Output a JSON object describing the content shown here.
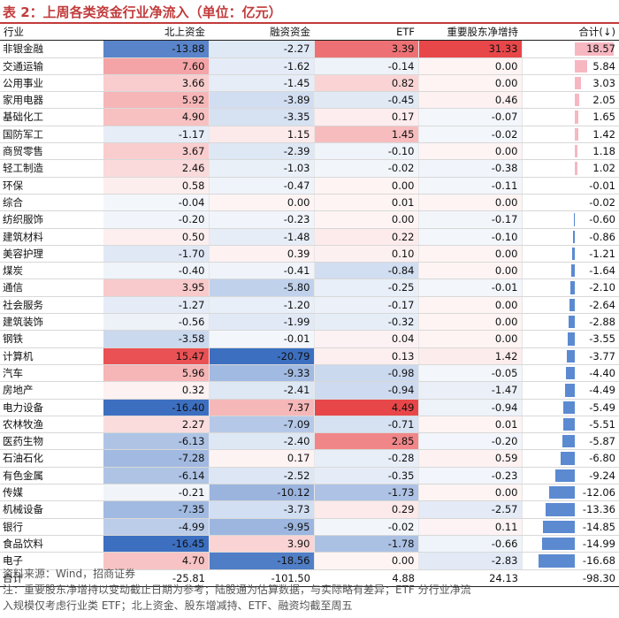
{
  "title": "表 2：上周各类资金行业净流入（单位：亿元）",
  "chart_data": {
    "type": "table",
    "headers": [
      "行业",
      "北上资金",
      "融资资金",
      "ETF",
      "重要股东净增持",
      "合计(↓)"
    ],
    "rows": [
      {
        "name": "非银金融",
        "values": [
          "-13.88",
          "-2.27",
          "3.39",
          "31.33",
          "18.57"
        ]
      },
      {
        "name": "交通运输",
        "values": [
          "7.60",
          "-1.62",
          "-0.14",
          "0.00",
          "5.84"
        ]
      },
      {
        "name": "公用事业",
        "values": [
          "3.66",
          "-1.45",
          "0.82",
          "0.00",
          "3.03"
        ]
      },
      {
        "name": "家用电器",
        "values": [
          "5.92",
          "-3.89",
          "-0.45",
          "0.46",
          "2.05"
        ]
      },
      {
        "name": "基础化工",
        "values": [
          "4.90",
          "-3.35",
          "0.17",
          "-0.07",
          "1.65"
        ]
      },
      {
        "name": "国防军工",
        "values": [
          "-1.17",
          "1.15",
          "1.45",
          "-0.02",
          "1.42"
        ]
      },
      {
        "name": "商贸零售",
        "values": [
          "3.67",
          "-2.39",
          "-0.10",
          "0.00",
          "1.18"
        ]
      },
      {
        "name": "轻工制造",
        "values": [
          "2.46",
          "-1.03",
          "-0.02",
          "-0.38",
          "1.02"
        ]
      },
      {
        "name": "环保",
        "values": [
          "0.58",
          "-0.47",
          "0.00",
          "-0.11",
          "-0.01"
        ]
      },
      {
        "name": "综合",
        "values": [
          "-0.04",
          "0.00",
          "0.01",
          "0.00",
          "-0.02"
        ]
      },
      {
        "name": "纺织服饰",
        "values": [
          "-0.20",
          "-0.23",
          "0.00",
          "-0.17",
          "-0.60"
        ]
      },
      {
        "name": "建筑材料",
        "values": [
          "0.50",
          "-1.48",
          "0.22",
          "-0.10",
          "-0.86"
        ]
      },
      {
        "name": "美容护理",
        "values": [
          "-1.70",
          "0.39",
          "0.10",
          "0.00",
          "-1.21"
        ]
      },
      {
        "name": "煤炭",
        "values": [
          "-0.40",
          "-0.41",
          "-0.84",
          "0.00",
          "-1.64"
        ]
      },
      {
        "name": "通信",
        "values": [
          "3.95",
          "-5.80",
          "-0.25",
          "-0.01",
          "-2.10"
        ]
      },
      {
        "name": "社会服务",
        "values": [
          "-1.27",
          "-1.20",
          "-0.17",
          "0.00",
          "-2.64"
        ]
      },
      {
        "name": "建筑装饰",
        "values": [
          "-0.56",
          "-1.99",
          "-0.32",
          "0.00",
          "-2.88"
        ]
      },
      {
        "name": "钢铁",
        "values": [
          "-3.58",
          "-0.01",
          "0.04",
          "0.00",
          "-3.55"
        ]
      },
      {
        "name": "计算机",
        "values": [
          "15.47",
          "-20.79",
          "0.13",
          "1.42",
          "-3.77"
        ]
      },
      {
        "name": "汽车",
        "values": [
          "5.96",
          "-9.33",
          "-0.98",
          "-0.05",
          "-4.40"
        ]
      },
      {
        "name": "房地产",
        "values": [
          "0.32",
          "-2.41",
          "-0.94",
          "-1.47",
          "-4.49"
        ]
      },
      {
        "name": "电力设备",
        "values": [
          "-16.40",
          "7.37",
          "4.49",
          "-0.94",
          "-5.49"
        ]
      },
      {
        "name": "农林牧渔",
        "values": [
          "2.27",
          "-7.09",
          "-0.71",
          "0.01",
          "-5.51"
        ]
      },
      {
        "name": "医药生物",
        "values": [
          "-6.13",
          "-2.40",
          "2.85",
          "-0.20",
          "-5.87"
        ]
      },
      {
        "name": "石油石化",
        "values": [
          "-7.28",
          "0.17",
          "-0.28",
          "0.59",
          "-6.80"
        ]
      },
      {
        "name": "有色金属",
        "values": [
          "-6.14",
          "-2.52",
          "-0.35",
          "-0.23",
          "-9.24"
        ]
      },
      {
        "name": "传媒",
        "values": [
          "-0.21",
          "-10.12",
          "-1.73",
          "0.00",
          "-12.06"
        ]
      },
      {
        "name": "机械设备",
        "values": [
          "-7.35",
          "-3.73",
          "0.29",
          "-2.57",
          "-13.36"
        ]
      },
      {
        "name": "银行",
        "values": [
          "-4.99",
          "-9.95",
          "-0.02",
          "0.11",
          "-14.85"
        ]
      },
      {
        "name": "食品饮料",
        "values": [
          "-16.45",
          "3.90",
          "-1.78",
          "-0.66",
          "-14.99"
        ]
      },
      {
        "name": "电子",
        "values": [
          "4.70",
          "-18.56",
          "0.00",
          "-2.83",
          "-16.68"
        ]
      }
    ],
    "total": {
      "name": "合计",
      "values": [
        "-25.81",
        "-101.50",
        "4.88",
        "24.13",
        "-98.30"
      ]
    },
    "colors": {
      "positive": "#e8474a",
      "negative": "#3c6fc0",
      "bar_positive": "#f7b7c1",
      "bar_negative": "#5b8ad1"
    }
  },
  "footer": {
    "source": "资料来源：Wind，招商证券",
    "note_line1": "注：重要股东净增持以变动截止日期为参考；陆股通为估算数据，与实际略有差异；ETF 分行业净流",
    "note_line2": "入规模仅考虑行业类 ETF；北上资金、股东增减持、ETF、融资均截至周五"
  }
}
